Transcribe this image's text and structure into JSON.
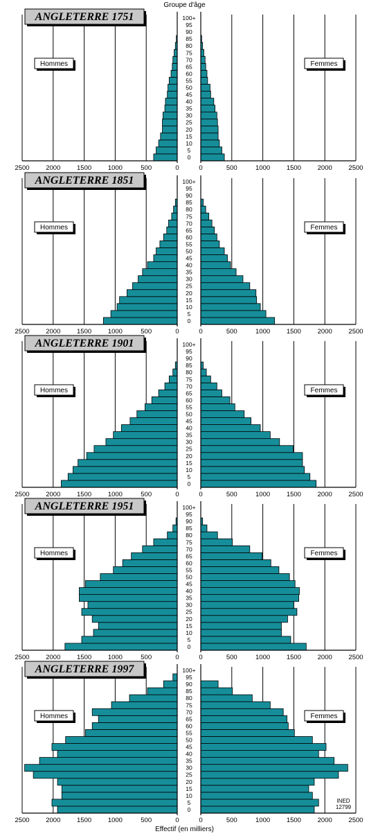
{
  "top_label": "Groupe d'âge",
  "bottom_label": "Effectif (en milliers)",
  "men_label": "Hommes",
  "women_label": "Femmes",
  "credit_lines": [
    "INED",
    "12799"
  ],
  "colors": {
    "bar": "#168e9a",
    "title_box": "#c8c8c8"
  },
  "chart_data": [
    {
      "type": "bar",
      "title": "ANGLETERRE 1751",
      "age_groups": [
        "0",
        "5",
        "10",
        "15",
        "20",
        "25",
        "30",
        "35",
        "40",
        "45",
        "50",
        "55",
        "60",
        "65",
        "70",
        "75",
        "80",
        "85",
        "90",
        "95",
        "100+"
      ],
      "xticks": [
        "2500",
        "2000",
        "1500",
        "1000",
        "500",
        "0"
      ],
      "xlim": [
        0,
        2500
      ],
      "series": [
        {
          "name": "Hommes",
          "values": [
            380,
            340,
            300,
            270,
            240,
            240,
            230,
            200,
            190,
            160,
            150,
            130,
            100,
            80,
            70,
            50,
            30,
            15,
            0,
            0,
            0
          ]
        },
        {
          "name": "Femmes",
          "values": [
            380,
            340,
            300,
            280,
            280,
            270,
            260,
            230,
            210,
            160,
            150,
            110,
            100,
            80,
            70,
            50,
            30,
            15,
            0,
            0,
            0
          ]
        }
      ]
    },
    {
      "type": "bar",
      "title": "ANGLETERRE 1851",
      "age_groups": [
        "0",
        "5",
        "10",
        "15",
        "20",
        "25",
        "30",
        "35",
        "40",
        "45",
        "50",
        "55",
        "60",
        "65",
        "70",
        "75",
        "80",
        "85",
        "90",
        "95",
        "100+"
      ],
      "xticks": [
        "2500",
        "2000",
        "1500",
        "1000",
        "500",
        "0"
      ],
      "xlim": [
        0,
        2500
      ],
      "series": [
        {
          "name": "Hommes",
          "values": [
            1190,
            1070,
            970,
            930,
            810,
            720,
            630,
            560,
            480,
            380,
            340,
            280,
            220,
            170,
            140,
            90,
            60,
            30,
            0,
            0,
            0
          ]
        },
        {
          "name": "Femmes",
          "values": [
            1190,
            1050,
            960,
            900,
            890,
            790,
            680,
            570,
            480,
            430,
            380,
            300,
            260,
            220,
            180,
            130,
            80,
            40,
            0,
            0,
            0
          ]
        }
      ]
    },
    {
      "type": "bar",
      "title": "ANGLETERRE 1901",
      "age_groups": [
        "0",
        "5",
        "10",
        "15",
        "20",
        "25",
        "30",
        "35",
        "40",
        "45",
        "50",
        "55",
        "60",
        "65",
        "70",
        "75",
        "80",
        "85",
        "90",
        "95",
        "100+"
      ],
      "xticks": [
        "2500",
        "2000",
        "1500",
        "1000",
        "500",
        "0"
      ],
      "xlim": [
        0,
        2500
      ],
      "series": [
        {
          "name": "Hommes",
          "values": [
            1870,
            1760,
            1680,
            1600,
            1460,
            1340,
            1150,
            1030,
            900,
            760,
            650,
            520,
            410,
            300,
            200,
            130,
            70,
            30,
            0,
            0,
            0
          ]
        },
        {
          "name": "Femmes",
          "values": [
            1860,
            1760,
            1670,
            1640,
            1640,
            1490,
            1270,
            1120,
            960,
            810,
            700,
            550,
            470,
            340,
            260,
            160,
            90,
            40,
            0,
            0,
            0
          ]
        }
      ]
    },
    {
      "type": "bar",
      "title": "ANGLETERRE 1951",
      "age_groups": [
        "0",
        "5",
        "10",
        "15",
        "20",
        "25",
        "30",
        "35",
        "40",
        "45",
        "50",
        "55",
        "60",
        "65",
        "70",
        "75",
        "80",
        "85",
        "90",
        "95",
        "100+"
      ],
      "xticks": [
        "2500",
        "2000",
        "1500",
        "1000",
        "500",
        "0"
      ],
      "xlim": [
        0,
        2500
      ],
      "series": [
        {
          "name": "Hommes",
          "values": [
            1810,
            1540,
            1350,
            1270,
            1370,
            1540,
            1440,
            1580,
            1580,
            1480,
            1240,
            1030,
            880,
            740,
            560,
            380,
            160,
            70,
            20,
            0,
            0
          ]
        },
        {
          "name": "Femmes",
          "values": [
            1700,
            1450,
            1300,
            1300,
            1400,
            1550,
            1500,
            1580,
            1590,
            1520,
            1430,
            1260,
            1130,
            990,
            790,
            510,
            270,
            100,
            30,
            0,
            0
          ]
        }
      ]
    },
    {
      "type": "bar",
      "title": "ANGLETERRE 1997",
      "age_groups": [
        "0",
        "5",
        "10",
        "15",
        "20",
        "25",
        "30",
        "35",
        "40",
        "45",
        "50",
        "55",
        "60",
        "65",
        "70",
        "75",
        "80",
        "85",
        "90",
        "95",
        "100+"
      ],
      "xticks": [
        "2500",
        "2000",
        "1500",
        "1000",
        "500",
        "0"
      ],
      "xlim": [
        0,
        2500
      ],
      "series": [
        {
          "name": "Hommes",
          "values": [
            1930,
            2020,
            1860,
            1860,
            1930,
            2320,
            2460,
            2220,
            1930,
            2020,
            1800,
            1480,
            1370,
            1270,
            1370,
            1060,
            770,
            480,
            220,
            70,
            0
          ]
        },
        {
          "name": "Femmes",
          "values": [
            1830,
            1900,
            1800,
            1740,
            1830,
            2220,
            2370,
            2150,
            1900,
            2020,
            1800,
            1510,
            1410,
            1390,
            1330,
            1120,
            830,
            510,
            280,
            0,
            0
          ]
        }
      ]
    }
  ]
}
